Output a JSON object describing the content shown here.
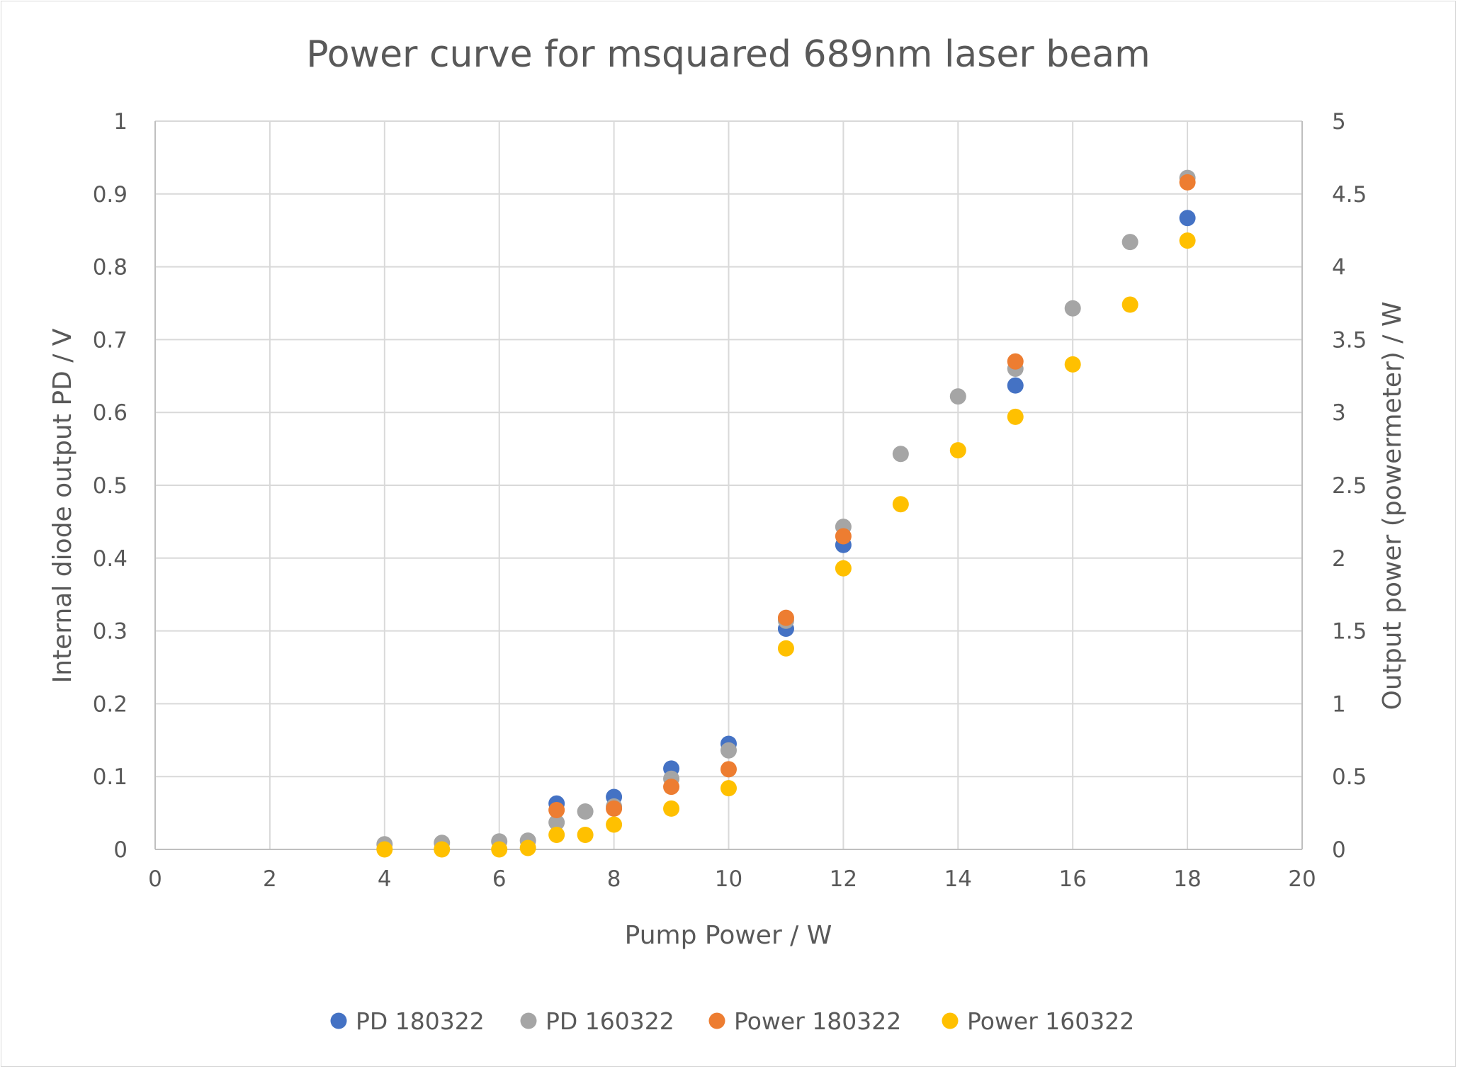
{
  "chart_data": {
    "type": "scatter",
    "title": "Power curve for msquared 689nm laser beam",
    "xlabel": "Pump Power / W",
    "ylabel": "Internal diode output PD / V",
    "y2label": "Output power (powermeter) / W",
    "xlim": [
      0,
      20
    ],
    "ylim": [
      0,
      1
    ],
    "y2lim": [
      0,
      5
    ],
    "x_ticks": [
      "0",
      "2",
      "4",
      "6",
      "8",
      "10",
      "12",
      "14",
      "16",
      "18",
      "20"
    ],
    "y_ticks": [
      "0",
      "0.1",
      "0.2",
      "0.3",
      "0.4",
      "0.5",
      "0.6",
      "0.7",
      "0.8",
      "0.9",
      "1"
    ],
    "y2_ticks": [
      "0",
      "0.5",
      "1",
      "1.5",
      "2",
      "2.5",
      "3",
      "3.5",
      "4",
      "4.5",
      "5"
    ],
    "grid": true,
    "legend_position": "bottom",
    "series": [
      {
        "name": "PD 180322",
        "axis": "left",
        "color": "#4472c4",
        "points": [
          [
            7,
            0.063
          ],
          [
            8,
            0.072
          ],
          [
            9,
            0.111
          ],
          [
            10,
            0.145
          ],
          [
            11,
            0.303
          ],
          [
            12,
            0.418
          ],
          [
            15,
            0.637
          ],
          [
            18,
            0.867
          ]
        ]
      },
      {
        "name": "PD 160322",
        "axis": "left",
        "color": "#a5a5a5",
        "points": [
          [
            4,
            0.007
          ],
          [
            5,
            0.009
          ],
          [
            6,
            0.011
          ],
          [
            6.5,
            0.012
          ],
          [
            7,
            0.037
          ],
          [
            7.5,
            0.052
          ],
          [
            8,
            0.059
          ],
          [
            9,
            0.097
          ],
          [
            10,
            0.136
          ],
          [
            11,
            0.314
          ],
          [
            12,
            0.443
          ],
          [
            13,
            0.543
          ],
          [
            14,
            0.622
          ],
          [
            15,
            0.66
          ],
          [
            16,
            0.743
          ],
          [
            17,
            0.834
          ],
          [
            18,
            0.922
          ]
        ]
      },
      {
        "name": "Power 180322",
        "axis": "right",
        "color": "#ed7d31",
        "points": [
          [
            7,
            0.27
          ],
          [
            8,
            0.28
          ],
          [
            9,
            0.43
          ],
          [
            10,
            0.55
          ],
          [
            11,
            1.59
          ],
          [
            12,
            2.15
          ],
          [
            15,
            3.35
          ],
          [
            18,
            4.58
          ]
        ]
      },
      {
        "name": "Power 160322",
        "axis": "right",
        "color": "#ffc000",
        "points": [
          [
            4,
            0.0
          ],
          [
            5,
            0.0
          ],
          [
            6,
            0.0
          ],
          [
            6.5,
            0.01
          ],
          [
            7,
            0.1
          ],
          [
            7.5,
            0.1
          ],
          [
            8,
            0.17
          ],
          [
            9,
            0.28
          ],
          [
            10,
            0.42
          ],
          [
            11,
            1.38
          ],
          [
            12,
            1.93
          ],
          [
            13,
            2.37
          ],
          [
            14,
            2.74
          ],
          [
            15,
            2.97
          ],
          [
            16,
            3.33
          ],
          [
            17,
            3.74
          ],
          [
            18,
            4.18
          ]
        ]
      }
    ]
  }
}
